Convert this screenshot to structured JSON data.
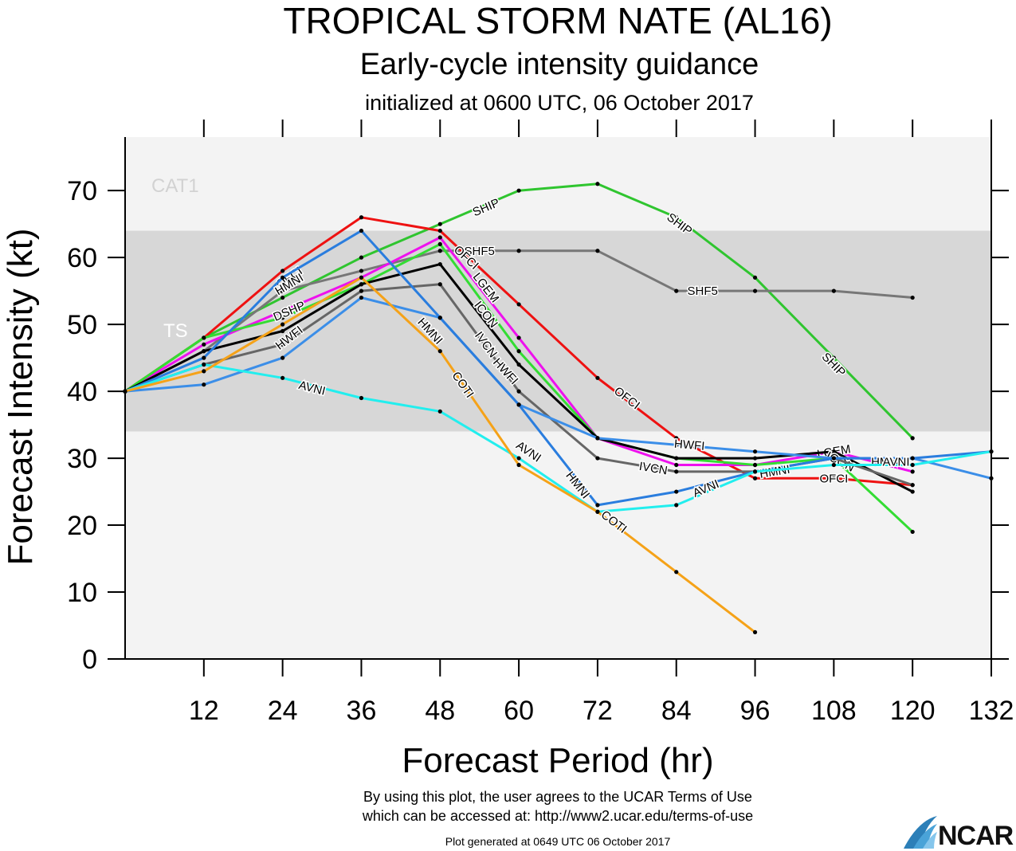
{
  "header": {
    "title": "TROPICAL STORM NATE (AL16)",
    "subtitle": "Early-cycle intensity guidance",
    "init": "initialized at 0600 UTC, 06 October 2017"
  },
  "footer": {
    "line1": "By using this plot, the user agrees to the UCAR Terms of Use",
    "line2": "which can be accessed at: http://www2.ucar.edu/terms-of-use",
    "generated": "Plot generated at 0649 UTC    06 October 2017",
    "logo_text": "NCAR"
  },
  "colors": {
    "background_band": "#f3f3f3",
    "ts_band": "#d7d7d7",
    "band_label": "#ffffff",
    "cat1_label": "#d2d2d2"
  },
  "chart_data": {
    "type": "line",
    "xlabel": "Forecast Period (hr)",
    "ylabel": "Forecast Intensity (kt)",
    "xlim": [
      0,
      132
    ],
    "ylim": [
      0,
      78
    ],
    "xticks": [
      12,
      24,
      36,
      48,
      60,
      72,
      84,
      96,
      108,
      120,
      132
    ],
    "yticks": [
      0,
      10,
      20,
      30,
      40,
      50,
      60,
      70
    ],
    "bands": [
      {
        "label": "TS",
        "from": 34,
        "to": 64
      },
      {
        "label": "CAT1",
        "from": 64,
        "to": 83
      }
    ],
    "series": [
      {
        "name": "SHIP",
        "color": "#2fc52f",
        "points": [
          [
            0,
            40
          ],
          [
            12,
            48
          ],
          [
            24,
            54
          ],
          [
            36,
            60
          ],
          [
            48,
            65
          ],
          [
            60,
            70
          ],
          [
            72,
            71
          ],
          [
            84,
            66
          ],
          [
            96,
            57
          ],
          [
            108,
            45
          ],
          [
            120,
            33
          ]
        ],
        "labels": [
          [
            55,
            67.5
          ],
          [
            84.5,
            65
          ],
          [
            108,
            44
          ]
        ]
      },
      {
        "name": "SHF5",
        "color": "#777777",
        "points": [
          [
            0,
            40
          ],
          [
            12,
            46
          ],
          [
            24,
            55
          ],
          [
            36,
            58
          ],
          [
            48,
            61
          ],
          [
            60,
            61
          ],
          [
            72,
            61
          ],
          [
            84,
            55
          ],
          [
            96,
            55
          ],
          [
            108,
            55
          ],
          [
            120,
            54
          ]
        ],
        "labels": [
          [
            54,
            61
          ],
          [
            88,
            55
          ]
        ]
      },
      {
        "name": "OFCI",
        "color": "#ee1111",
        "points": [
          [
            0,
            40
          ],
          [
            12,
            48
          ],
          [
            24,
            58
          ],
          [
            36,
            66
          ],
          [
            48,
            64
          ],
          [
            60,
            53
          ],
          [
            72,
            42
          ],
          [
            84,
            33
          ],
          [
            96,
            27
          ],
          [
            108,
            27
          ],
          [
            120,
            26
          ]
        ],
        "labels": [
          [
            25,
            57
          ],
          [
            52,
            60
          ],
          [
            76.5,
            39
          ],
          [
            108,
            27
          ]
        ]
      },
      {
        "name": "LGEM",
        "color": "#ee11ee",
        "points": [
          [
            0,
            40
          ],
          [
            12,
            47
          ],
          [
            24,
            52
          ],
          [
            36,
            57
          ],
          [
            48,
            63
          ],
          [
            60,
            48
          ],
          [
            72,
            33
          ],
          [
            84,
            29
          ],
          [
            96,
            29
          ],
          [
            108,
            31
          ],
          [
            120,
            28
          ]
        ],
        "labels": [
          [
            55,
            55.5
          ],
          [
            108,
            31
          ]
        ]
      },
      {
        "name": "DSHP",
        "color": "#33dd33",
        "points": [
          [
            0,
            40
          ],
          [
            12,
            48
          ],
          [
            24,
            51
          ],
          [
            36,
            56
          ],
          [
            48,
            62
          ],
          [
            60,
            46
          ],
          [
            72,
            33
          ],
          [
            84,
            30
          ],
          [
            96,
            29
          ],
          [
            108,
            30
          ],
          [
            120,
            19
          ]
        ],
        "labels": [
          [
            25,
            52
          ]
        ]
      },
      {
        "name": "ICON",
        "color": "#000000",
        "points": [
          [
            0,
            40
          ],
          [
            12,
            46
          ],
          [
            24,
            49
          ],
          [
            36,
            56
          ],
          [
            48,
            59
          ],
          [
            60,
            44
          ],
          [
            72,
            33
          ],
          [
            84,
            30
          ],
          [
            96,
            30
          ],
          [
            108,
            31
          ],
          [
            120,
            25
          ]
        ],
        "labels": [
          [
            55,
            51.5
          ],
          [
            109,
            29.5
          ]
        ]
      },
      {
        "name": "IVCN",
        "color": "#666666",
        "points": [
          [
            0,
            40
          ],
          [
            12,
            44
          ],
          [
            24,
            47
          ],
          [
            36,
            55
          ],
          [
            48,
            56
          ],
          [
            60,
            40
          ],
          [
            72,
            30
          ],
          [
            84,
            28
          ],
          [
            96,
            28
          ],
          [
            108,
            30
          ],
          [
            120,
            26
          ]
        ],
        "labels": [
          [
            55,
            47
          ],
          [
            80.5,
            28.5
          ]
        ]
      },
      {
        "name": "HWFI",
        "color": "#3b8ee8",
        "points": [
          [
            0,
            40
          ],
          [
            12,
            41
          ],
          [
            24,
            45
          ],
          [
            36,
            54
          ],
          [
            48,
            51
          ],
          [
            60,
            38
          ],
          [
            72,
            33
          ],
          [
            84,
            32
          ],
          [
            96,
            31
          ],
          [
            108,
            30
          ],
          [
            120,
            30
          ],
          [
            132,
            27
          ]
        ],
        "labels": [
          [
            25,
            48
          ],
          [
            58,
            43
          ],
          [
            86,
            32
          ]
        ]
      },
      {
        "name": "HMNI",
        "color": "#2a7dde",
        "points": [
          [
            0,
            40
          ],
          [
            12,
            45
          ],
          [
            24,
            57
          ],
          [
            36,
            64
          ],
          [
            48,
            51
          ],
          [
            60,
            38
          ],
          [
            72,
            23
          ],
          [
            84,
            25
          ],
          [
            96,
            28
          ],
          [
            108,
            30
          ],
          [
            120,
            30
          ],
          [
            132,
            31
          ]
        ],
        "labels": [
          [
            25,
            56
          ],
          [
            46.5,
            49
          ],
          [
            69,
            26
          ],
          [
            99,
            28
          ],
          [
            116,
            29.5
          ]
        ]
      },
      {
        "name": "AVNI",
        "color": "#22eeee",
        "points": [
          [
            0,
            40
          ],
          [
            12,
            44
          ],
          [
            24,
            42
          ],
          [
            36,
            39
          ],
          [
            48,
            37
          ],
          [
            60,
            30
          ],
          [
            72,
            22
          ],
          [
            84,
            23
          ],
          [
            96,
            28
          ],
          [
            108,
            29
          ],
          [
            120,
            29
          ],
          [
            132,
            31
          ]
        ],
        "labels": [
          [
            28.5,
            40.5
          ],
          [
            61.5,
            31
          ],
          [
            88.5,
            25.5
          ],
          [
            117.5,
            29.5
          ]
        ]
      },
      {
        "name": "COTI",
        "color": "#f5a218",
        "points": [
          [
            0,
            40
          ],
          [
            12,
            43
          ],
          [
            24,
            50
          ],
          [
            36,
            57
          ],
          [
            48,
            46
          ],
          [
            60,
            29
          ],
          [
            72,
            22
          ],
          [
            84,
            13
          ],
          [
            96,
            4
          ]
        ],
        "labels": [
          [
            51.5,
            41
          ],
          [
            74.5,
            20.5
          ]
        ]
      }
    ]
  }
}
